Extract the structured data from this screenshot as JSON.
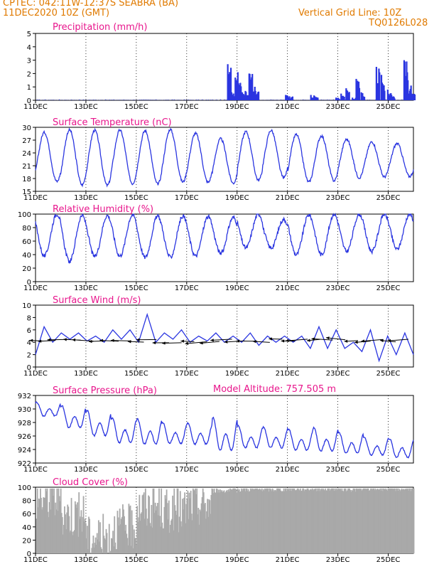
{
  "header": {
    "line1": "CPTEC:   042:11W-12:37S   SEABRA (BA)",
    "line2": "11DEC2020 10Z (GMT)",
    "grid_note": "Vertical Grid Line: 10Z",
    "code": "TQ0126L028"
  },
  "colors": {
    "header": "#e07a00",
    "title": "#e8168c",
    "line": "#2a35e0",
    "cloud": "#a9a9a9",
    "wind_arrow": "#000000"
  },
  "chart_data": [
    {
      "type": "bar",
      "title": "Precipitation (mm/h)",
      "ylim": [
        0,
        5
      ],
      "yticks": [
        0,
        1,
        2,
        3,
        4,
        5
      ],
      "xlim": [
        0,
        15
      ],
      "xtick_labels": [
        "11DEC",
        "13DEC",
        "15DEC",
        "17DEC",
        "19DEC",
        "21DEC",
        "23DEC",
        "25DEC"
      ],
      "xtick_days": [
        0,
        2,
        4,
        6,
        8,
        10,
        12,
        14
      ],
      "series": [
        {
          "x": [
            7.6,
            7.75,
            7.9,
            8.0,
            8.15,
            8.3,
            8.45,
            8.55,
            8.7,
            9.9,
            10.05,
            10.9,
            11.05,
            11.9,
            12.1,
            12.3,
            12.55,
            12.7,
            12.9,
            13.5,
            13.7,
            13.95,
            14.1,
            14.6,
            14.75,
            14.9
          ],
          "values": [
            2.7,
            0.6,
            1.7,
            2.1,
            0.6,
            0.7,
            2.0,
            1.3,
            0.7,
            0.4,
            0.3,
            0.4,
            0.3,
            0.2,
            0.5,
            0.9,
            0.2,
            1.6,
            0.6,
            2.5,
            1.9,
            0.8,
            0.4,
            3.0,
            1.5,
            0.5
          ]
        }
      ]
    },
    {
      "type": "line",
      "title": "Surface Temperature (nC)",
      "ylim": [
        15,
        30
      ],
      "yticks": [
        15,
        18,
        21,
        24,
        27,
        30
      ],
      "xlim": [
        0,
        15
      ],
      "xtick_labels": [
        "11DEC",
        "13DEC",
        "15DEC",
        "17DEC",
        "19DEC",
        "21DEC",
        "23DEC",
        "25DEC"
      ],
      "xtick_days": [
        0,
        2,
        4,
        6,
        8,
        10,
        12,
        14
      ],
      "daily_min": [
        17.3,
        16.5,
        16.4,
        16.8,
        16.7,
        17.2,
        17.1,
        16.9,
        17.6,
        18.2,
        17.2,
        17.5,
        18.2,
        18.4,
        18.5
      ],
      "daily_max": [
        28.8,
        29.4,
        29.3,
        29.3,
        29.2,
        29.5,
        28.6,
        27.3,
        29.0,
        29.3,
        28.3,
        28.0,
        27.2,
        26.6,
        26.2
      ],
      "series": [
        {
          "name": "",
          "x": [
            0,
            0.15,
            0.3,
            0.45,
            0.6,
            0.75,
            0.9
          ],
          "values": [
            20.0,
            17.3,
            24.5,
            28.8,
            24.0,
            19.5,
            17.5
          ]
        }
      ]
    },
    {
      "type": "line",
      "title": "Relative Humidity (%)",
      "ylim": [
        0,
        100
      ],
      "yticks": [
        0,
        20,
        40,
        60,
        80,
        100
      ],
      "xlim": [
        0,
        15
      ],
      "xtick_labels": [
        "11DEC",
        "13DEC",
        "15DEC",
        "17DEC",
        "19DEC",
        "21DEC",
        "23DEC",
        "25DEC"
      ],
      "xtick_days": [
        0,
        2,
        4,
        6,
        8,
        10,
        12,
        14
      ],
      "daily_min": [
        38,
        30,
        37,
        38,
        36,
        36,
        38,
        42,
        50,
        50,
        40,
        40,
        45,
        45,
        48
      ],
      "daily_max": [
        100,
        98,
        98,
        99,
        97,
        97,
        96,
        95,
        100,
        92,
        99,
        100,
        100,
        100,
        100
      ]
    },
    {
      "type": "line",
      "title": "Surface Wind (m/s)",
      "ylim": [
        0,
        10
      ],
      "yticks": [
        0,
        2,
        4,
        6,
        8,
        10
      ],
      "xlim": [
        0,
        15
      ],
      "xtick_labels": [
        "11DEC",
        "13DEC",
        "15DEC",
        "17DEC",
        "19DEC",
        "21DEC",
        "23DEC",
        "25DEC"
      ],
      "xtick_days": [
        0,
        2,
        4,
        6,
        8,
        10,
        12,
        14
      ],
      "speed": [
        2.0,
        6.5,
        4.0,
        5.5,
        4.5,
        5.5,
        4.2,
        5.0,
        4.0,
        6.0,
        4.5,
        6.0,
        4.0,
        8.5,
        4.0,
        5.5,
        4.5,
        6.0,
        4.0,
        5.0,
        4.2,
        5.5,
        4.0,
        5.0,
        4.0,
        5.5,
        3.5,
        5.0,
        4.0,
        5.0,
        4.0,
        5.0,
        3.0,
        6.5,
        3.0,
        6.0,
        3.0,
        4.0,
        2.5,
        6.0,
        1.0,
        5.0,
        2.0,
        5.5,
        2.0
      ]
    },
    {
      "type": "line",
      "title": "Surface Pressure (hPa)",
      "annotation": "Model Altitude: 757.505  m",
      "ylim": [
        922,
        932
      ],
      "yticks": [
        922,
        924,
        926,
        928,
        930,
        932
      ],
      "xlim": [
        0,
        15
      ],
      "xtick_labels": [
        "11DEC",
        "13DEC",
        "15DEC",
        "17DEC",
        "19DEC",
        "21DEC",
        "23DEC",
        "25DEC"
      ],
      "xtick_days": [
        0,
        2,
        4,
        6,
        8,
        10,
        12,
        14
      ],
      "daily_max": [
        931.0,
        930.5,
        929.8,
        928.7,
        928.5,
        928.0,
        927.9,
        928.7,
        927.5,
        927.3,
        927.0,
        927.2,
        926.5,
        925.8,
        925.6
      ],
      "daily_min": [
        928.5,
        926.5,
        925.2,
        924.2,
        924.0,
        924.2,
        924.1,
        922.8,
        923.5,
        923.6,
        923.2,
        923.0,
        922.8,
        922.6,
        922.2
      ]
    },
    {
      "type": "area",
      "title": "Cloud Cover (%)",
      "ylim": [
        0,
        100
      ],
      "yticks": [
        0,
        20,
        40,
        60,
        80,
        100
      ],
      "xlim": [
        0,
        15
      ],
      "xtick_labels": [
        "11DEC",
        "13DEC",
        "15DEC",
        "17DEC",
        "19DEC",
        "21DEC",
        "23DEC",
        "25DEC"
      ],
      "xtick_days": [
        0,
        2,
        4,
        6,
        8,
        10,
        12,
        14
      ],
      "daily_mean": [
        85,
        60,
        25,
        40,
        70,
        65,
        75,
        95,
        97,
        97,
        98,
        98,
        97,
        98,
        98
      ]
    }
  ]
}
